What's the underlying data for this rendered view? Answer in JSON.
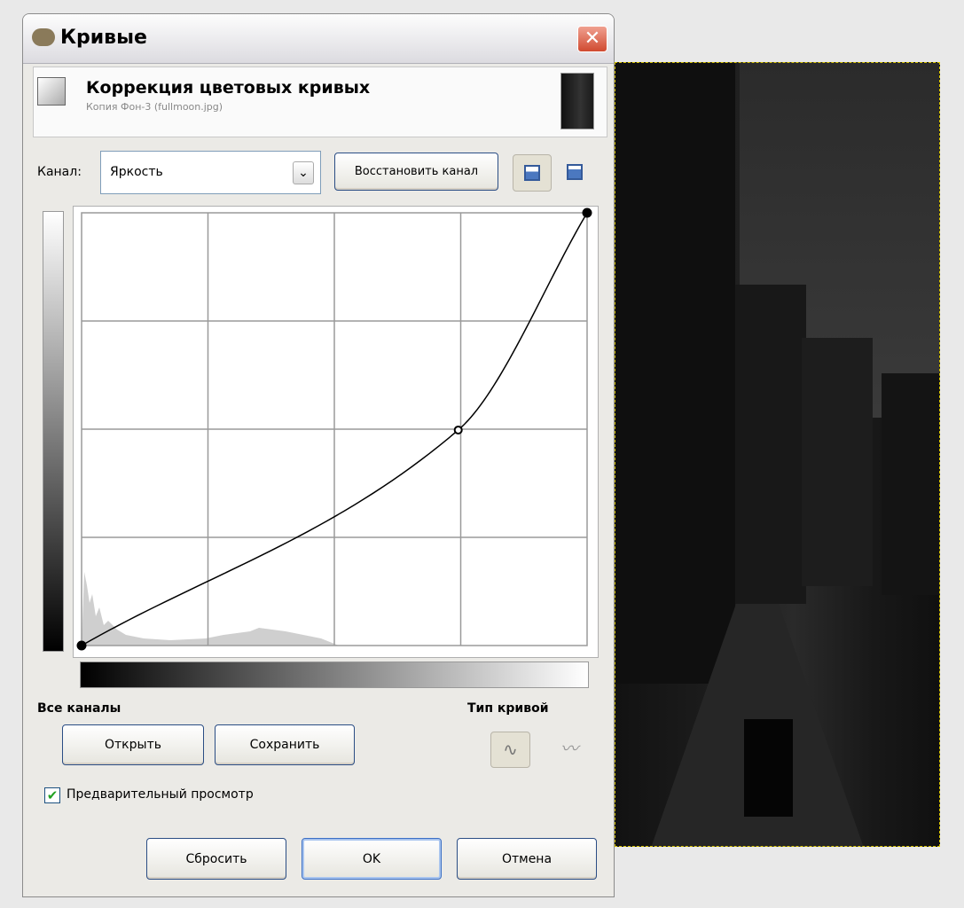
{
  "window": {
    "title": "Кривые"
  },
  "header": {
    "title": "Коррекция цветовых кривых",
    "subtitle": "Копия Фон-3 (fullmoon.jpg)"
  },
  "channel": {
    "label": "Канал:",
    "value": "Яркость",
    "reset_button": "Восстановить канал"
  },
  "curve": {
    "range": [
      0,
      255
    ],
    "x": [
      0,
      190,
      255
    ],
    "y": [
      0,
      127,
      255
    ]
  },
  "all_channels": {
    "label": "Все каналы",
    "open_button": "Открыть",
    "save_button": "Сохранить"
  },
  "curve_type": {
    "label": "Тип кривой"
  },
  "preview": {
    "label": "Предварительный просмотр",
    "checked": true
  },
  "buttons": {
    "reset": "Сбросить",
    "ok": "OK",
    "cancel": "Отмена"
  }
}
